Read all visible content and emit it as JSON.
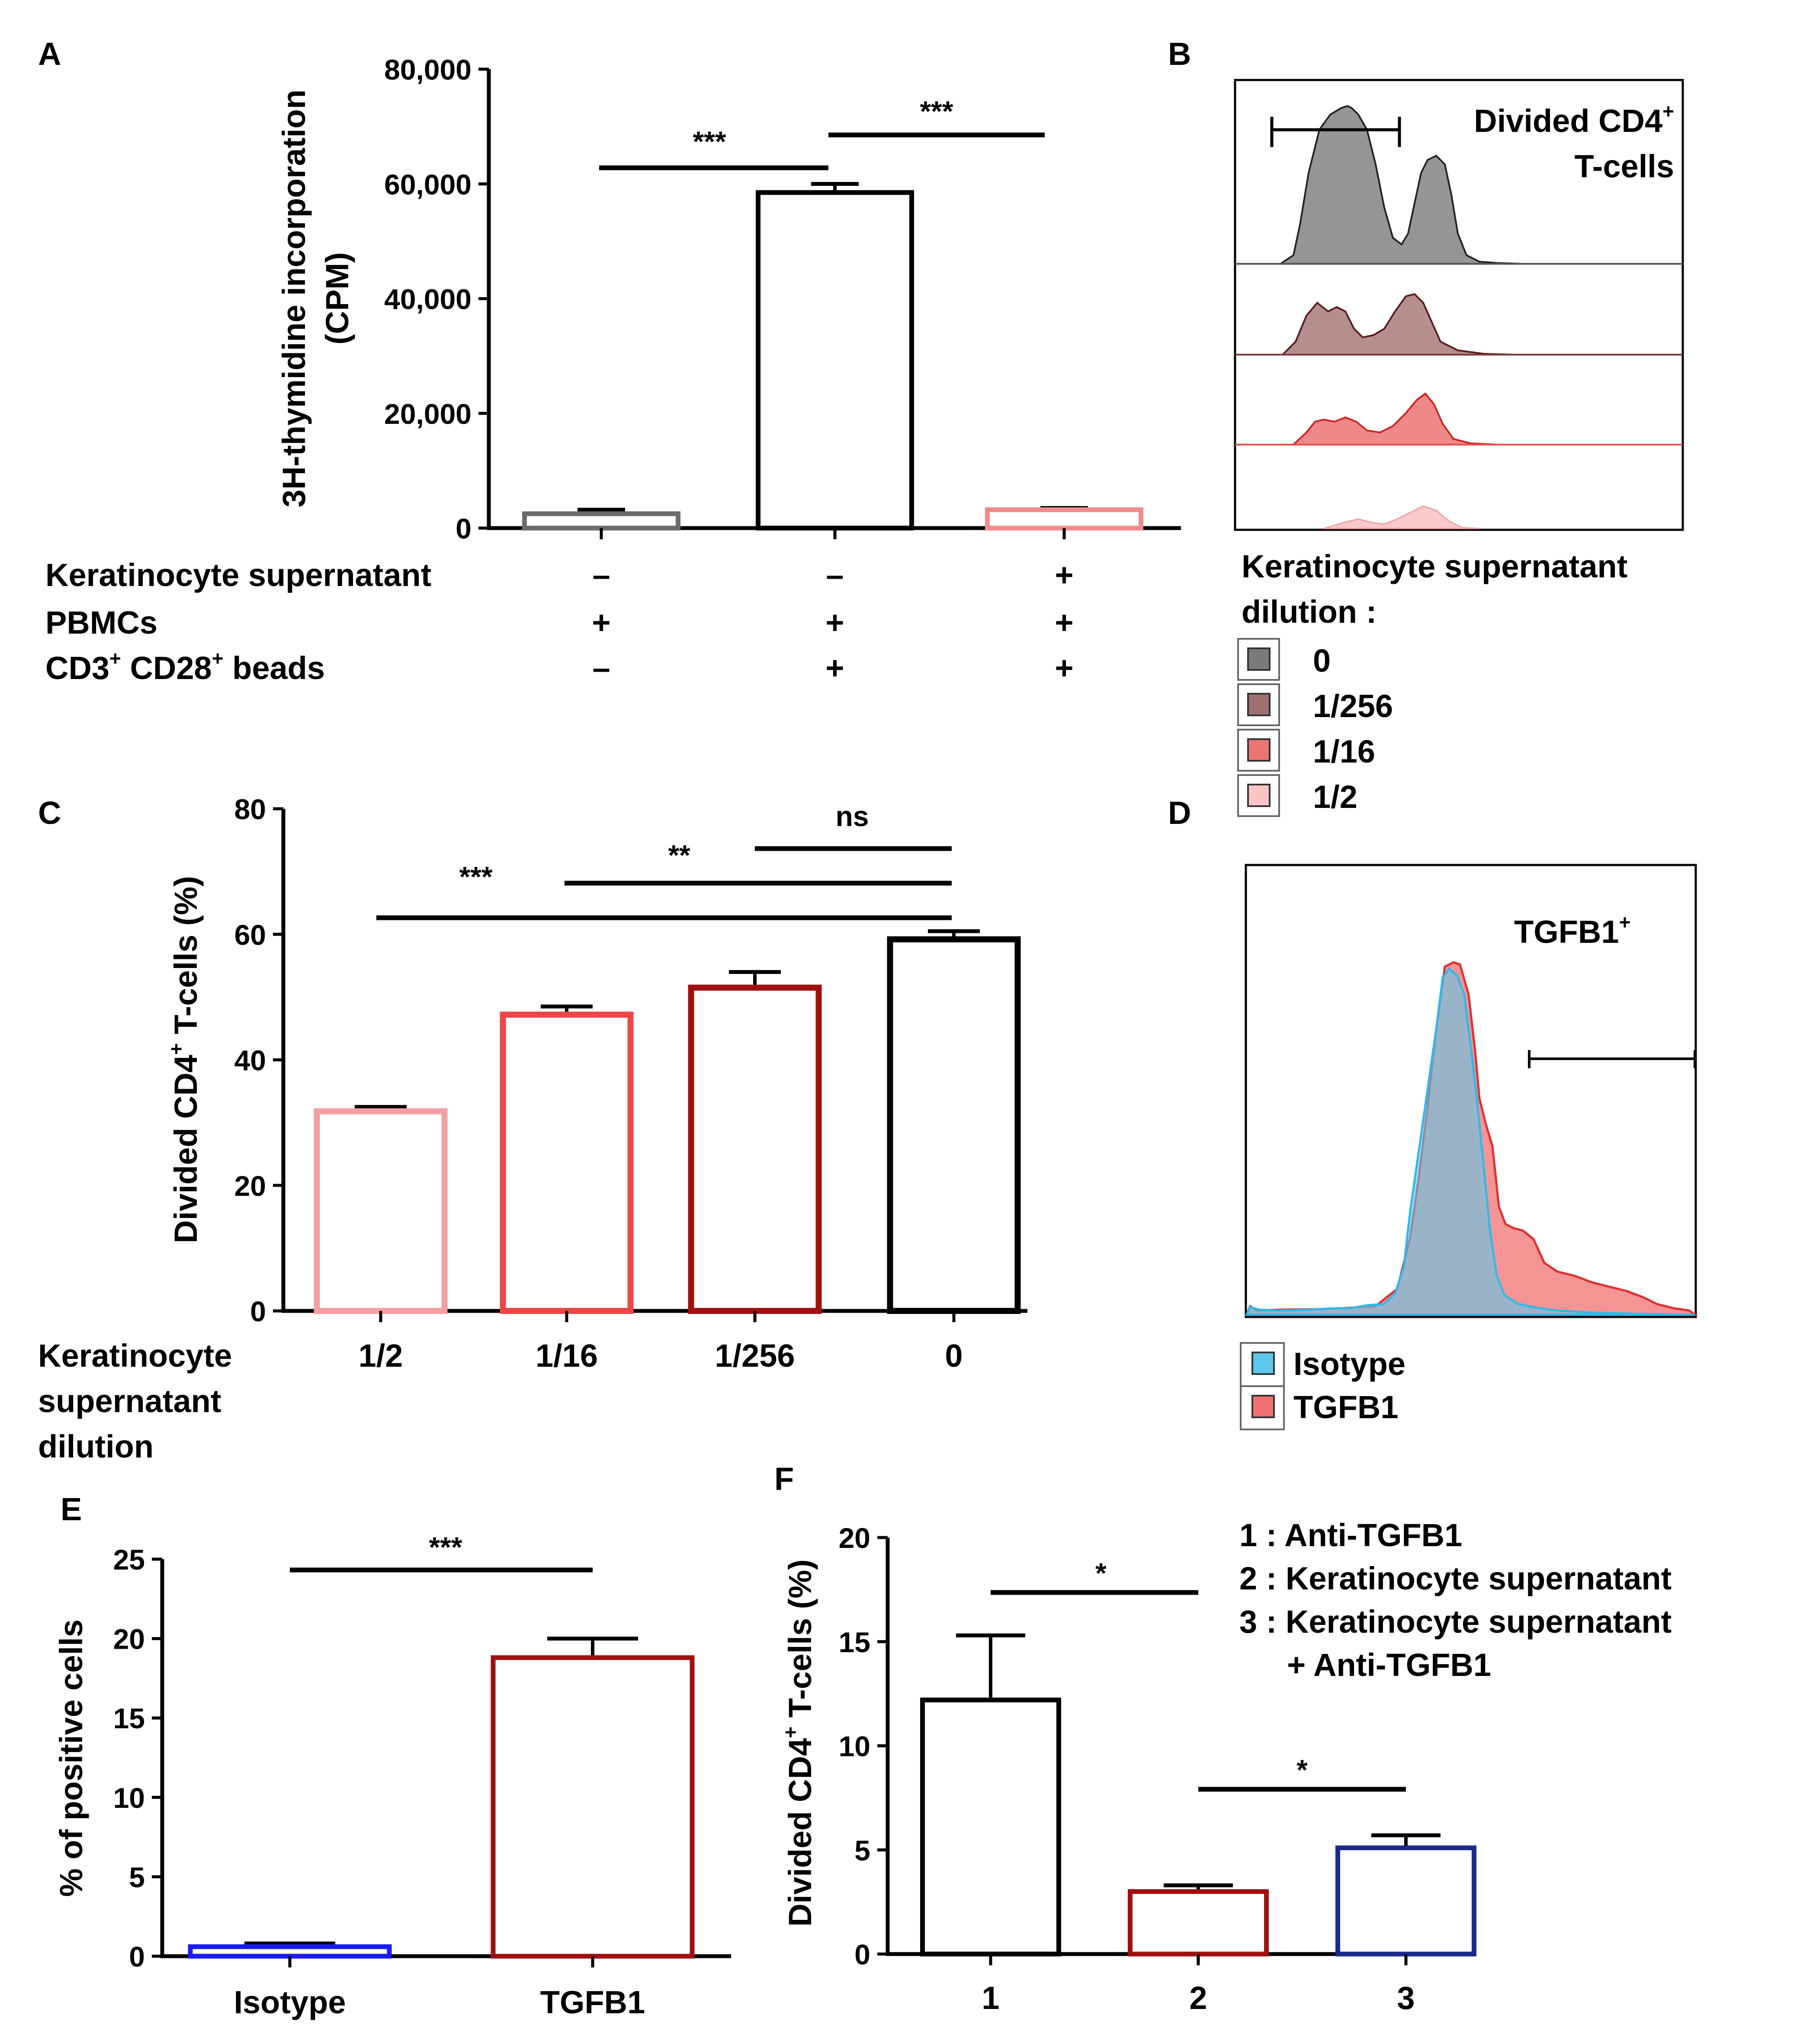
{
  "chart_data": [
    {
      "panel": "A",
      "type": "bar",
      "ylabel_line1": "3H-thymidine incorporation",
      "ylabel_line2": "(CPM)",
      "ylim": [
        0,
        80000
      ],
      "yticks": [
        "0",
        "20,000",
        "40,000",
        "60,000",
        "80,000"
      ],
      "conditions": [
        {
          "label": "Keratinocyte supernatant",
          "signs": [
            "–",
            "–",
            "+"
          ]
        },
        {
          "label": "PBMCs",
          "signs": [
            "+",
            "+",
            "+"
          ]
        },
        {
          "label": "CD3",
          "label_sup": "+",
          "label_mid": " CD28",
          "label_sup2": "+",
          "label_end": " beads",
          "signs": [
            "–",
            "+",
            "+"
          ]
        }
      ],
      "values": [
        2500,
        58500,
        3200
      ],
      "errors": [
        700,
        1500,
        300
      ],
      "colors": [
        "#6b6b6b",
        "#000000",
        "#f28b8b"
      ],
      "significance": [
        {
          "label": "***",
          "from": 0,
          "to": 1
        },
        {
          "label": "***",
          "from": 1,
          "to": 2
        }
      ]
    },
    {
      "panel": "B",
      "type": "histogram-overlay",
      "gate_label_line1": "Divided CD4",
      "gate_label_sup": "+",
      "gate_label_line2": "T-cells",
      "legend_title_line1": "Keratinocyte supernatant",
      "legend_title_line2": "dilution :",
      "legend": [
        {
          "label": "0",
          "fill": "#7a7a7a"
        },
        {
          "label": "1/256",
          "fill": "#a07070"
        },
        {
          "label": "1/16",
          "fill": "#ec7474"
        },
        {
          "label": "1/2",
          "fill": "#f8c4c4"
        }
      ]
    },
    {
      "panel": "C",
      "type": "bar",
      "ylabel": "Divided CD4",
      "ylabel_sup": "+",
      "ylabel_end": " T-cells (%)",
      "ylim": [
        0,
        80
      ],
      "yticks": [
        "0",
        "20",
        "40",
        "60",
        "80"
      ],
      "xtitle_line1": "Keratinocyte",
      "xtitle_line2": "supernatant",
      "xtitle_line3": "dilution",
      "categories": [
        "1/2",
        "1/16",
        "1/256",
        "0"
      ],
      "values": [
        31.8,
        47.2,
        51.5,
        59.2
      ],
      "errors": [
        0.7,
        1.3,
        2.5,
        1.3
      ],
      "colors": [
        "#f4a0a0",
        "#ec4646",
        "#a01010",
        "#000000"
      ],
      "significance": [
        {
          "label": "***",
          "from": 0,
          "to": 3
        },
        {
          "label": "**",
          "from": 1,
          "to": 3
        },
        {
          "label": "ns",
          "from": 2,
          "to": 3
        }
      ]
    },
    {
      "panel": "D",
      "type": "histogram-overlay",
      "gate_label": "TGFB1",
      "gate_label_sup": "+",
      "legend": [
        {
          "label": "Isotype",
          "fill": "#5bc8ec"
        },
        {
          "label": "TGFB1",
          "fill": "#f07070"
        }
      ]
    },
    {
      "panel": "E",
      "type": "bar",
      "ylabel": "% of positive cells",
      "ylim": [
        0,
        25
      ],
      "yticks": [
        "0",
        "5",
        "10",
        "15",
        "20",
        "25"
      ],
      "categories": [
        "Isotype",
        "TGFB1"
      ],
      "values": [
        0.6,
        18.8
      ],
      "errors": [
        0.2,
        1.2
      ],
      "colors": [
        "#1a1aff",
        "#a01010"
      ],
      "significance": [
        {
          "label": "***",
          "from": 0,
          "to": 1
        }
      ]
    },
    {
      "panel": "F",
      "type": "bar",
      "ylabel": "Divided CD4",
      "ylabel_sup": "+",
      "ylabel_end": " T-cells (%)",
      "ylim": [
        0,
        20
      ],
      "yticks": [
        "0",
        "5",
        "10",
        "15",
        "20"
      ],
      "categories": [
        "1",
        "2",
        "3"
      ],
      "values": [
        12.2,
        3.0,
        5.1
      ],
      "errors": [
        3.1,
        0.3,
        0.6
      ],
      "colors": [
        "#000000",
        "#a01010",
        "#1a2a8a"
      ],
      "legend_lines": [
        "1 : Anti-TGFB1",
        "2 : Keratinocyte supernatant",
        "3 : Keratinocyte supernatant",
        "+ Anti-TGFB1"
      ],
      "significance": [
        {
          "label": "*",
          "from": 0,
          "to": 1
        },
        {
          "label": "*",
          "from": 1,
          "to": 2
        }
      ]
    }
  ]
}
